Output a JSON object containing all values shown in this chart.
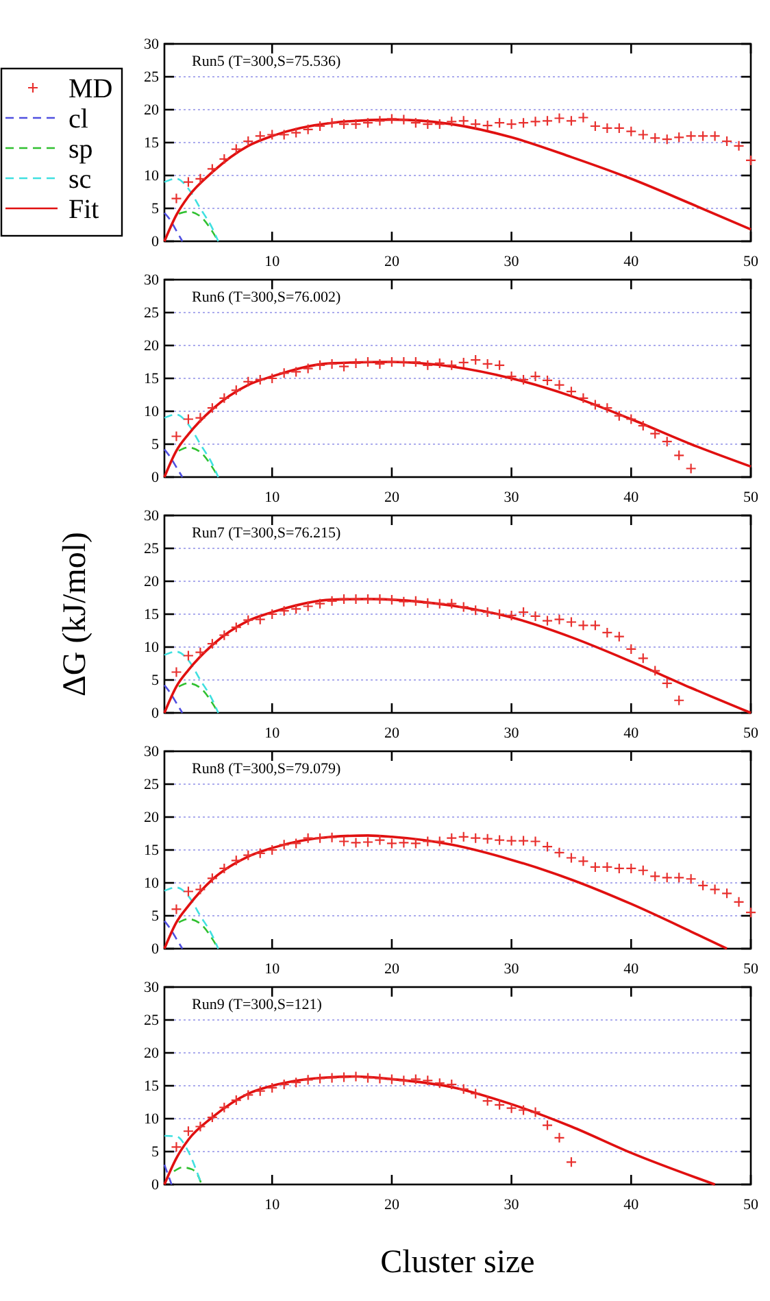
{
  "chart_data": [
    {
      "type": "scatter",
      "annotations": [
        "Run5 (T=300,S=75.536)"
      ],
      "xlim": [
        1,
        50
      ],
      "xticks": [
        10,
        20,
        30,
        40,
        50
      ],
      "ylim": [
        0,
        30
      ],
      "yticks": [
        0,
        5,
        10,
        15,
        20,
        25,
        30
      ],
      "grid": "y",
      "legend": "left",
      "series": [
        {
          "name": "MD",
          "type": "scatter",
          "marker": "cross",
          "color": "#e8302e",
          "x": [
            2,
            3,
            4,
            5,
            6,
            7,
            8,
            9,
            10,
            11,
            12,
            13,
            14,
            15,
            16,
            17,
            18,
            19,
            20,
            21,
            22,
            23,
            24,
            25,
            26,
            27,
            28,
            29,
            30,
            31,
            32,
            33,
            34,
            35,
            36,
            37,
            38,
            39,
            40,
            41,
            42,
            43,
            44,
            45,
            46,
            47,
            48,
            49,
            50
          ],
          "values": [
            6.5,
            9,
            9.5,
            11,
            12.5,
            14,
            15.2,
            16,
            16.2,
            16.2,
            16.5,
            17,
            17.5,
            18,
            17.8,
            17.8,
            18,
            18.3,
            18.6,
            18.5,
            18,
            17.8,
            17.8,
            18.2,
            18.3,
            17.8,
            17.6,
            18,
            17.8,
            18,
            18.2,
            18.3,
            18.7,
            18.3,
            18.8,
            17.5,
            17.2,
            17.2,
            16.7,
            16.2,
            15.7,
            15.5,
            15.8,
            16,
            16,
            16,
            15.2,
            14.5,
            12.3
          ]
        },
        {
          "name": "cl",
          "type": "line",
          "line_style": "dashed",
          "color": "#5050e0",
          "x": [
            1,
            1.5,
            2,
            2.5
          ],
          "values": [
            4.3,
            3.2,
            1.6,
            0
          ]
        },
        {
          "name": "sp",
          "type": "line",
          "line_style": "dashed",
          "color": "#30c030",
          "x": [
            2.2,
            3,
            4,
            5,
            5.5
          ],
          "values": [
            4.2,
            4.5,
            3.8,
            1.5,
            0
          ]
        },
        {
          "name": "sc",
          "type": "line",
          "line_style": "dashed",
          "color": "#40e0e0",
          "x": [
            1,
            2,
            3,
            4,
            5,
            5.5
          ],
          "values": [
            9,
            9.5,
            8,
            5,
            2,
            0
          ]
        },
        {
          "name": "Fit",
          "type": "line",
          "line_style": "solid",
          "color": "#e01010",
          "x": [
            1,
            2,
            3,
            5,
            8,
            10,
            15,
            20,
            25,
            30,
            35,
            40,
            45,
            50
          ],
          "values": [
            0,
            4,
            6.8,
            10.5,
            14.5,
            16,
            18,
            18.5,
            17.8,
            15.8,
            12.8,
            9.5,
            5.7,
            1.8
          ]
        }
      ]
    },
    {
      "type": "scatter",
      "annotations": [
        "Run6 (T=300,S=76.002)"
      ],
      "xlim": [
        1,
        50
      ],
      "xticks": [
        10,
        20,
        30,
        40,
        50
      ],
      "ylim": [
        0,
        30
      ],
      "yticks": [
        0,
        5,
        10,
        15,
        20,
        25,
        30
      ],
      "grid": "y",
      "series": [
        {
          "type": "scatter",
          "marker": "cross",
          "color": "#e8302e",
          "x": [
            2,
            3,
            4,
            5,
            6,
            7,
            8,
            9,
            10,
            11,
            12,
            13,
            14,
            15,
            16,
            17,
            18,
            19,
            20,
            21,
            22,
            23,
            24,
            25,
            26,
            27,
            28,
            29,
            30,
            31,
            32,
            33,
            34,
            35,
            36,
            37,
            38,
            39,
            40,
            41,
            42,
            43,
            44,
            45
          ],
          "values": [
            6.2,
            8.8,
            9,
            10.5,
            12,
            13.2,
            14.5,
            14.8,
            15,
            15.8,
            16,
            16.5,
            17,
            17.2,
            16.8,
            17.3,
            17.5,
            17.2,
            17.5,
            17.5,
            17.5,
            17,
            17.3,
            17,
            17.4,
            17.8,
            17.2,
            17,
            15.3,
            14.8,
            15.3,
            14.7,
            14,
            13,
            12,
            11,
            10.5,
            9.3,
            8.8,
            7.8,
            6.6,
            5.4,
            3.3,
            1.3
          ]
        },
        {
          "type": "line",
          "line_style": "dashed",
          "color": "#5050e0",
          "x": [
            1,
            1.5,
            2,
            2.5
          ],
          "values": [
            4.2,
            3,
            1.5,
            0
          ]
        },
        {
          "type": "line",
          "line_style": "dashed",
          "color": "#30c030",
          "x": [
            2.2,
            3,
            4,
            5,
            5.5
          ],
          "values": [
            4,
            4.5,
            3.8,
            1.5,
            0
          ]
        },
        {
          "type": "line",
          "line_style": "dashed",
          "color": "#40e0e0",
          "x": [
            1,
            2,
            3,
            4,
            5,
            5.5
          ],
          "values": [
            9,
            9.5,
            8,
            5,
            2,
            0
          ]
        },
        {
          "type": "line",
          "line_style": "solid",
          "color": "#e01010",
          "x": [
            1,
            2,
            3,
            5,
            8,
            10,
            15,
            20,
            25,
            30,
            35,
            40,
            45,
            50
          ],
          "values": [
            0,
            4,
            6.5,
            10.3,
            14,
            15.3,
            17.3,
            17.5,
            16.8,
            15,
            12.3,
            8.8,
            5,
            1.6
          ]
        }
      ]
    },
    {
      "type": "scatter",
      "annotations": [
        "Run7 (T=300,S=76.215)"
      ],
      "ylabel": "ΔG (kJ/mol)",
      "xlim": [
        1,
        50
      ],
      "xticks": [
        10,
        20,
        30,
        40,
        50
      ],
      "ylim": [
        0,
        30
      ],
      "yticks": [
        0,
        5,
        10,
        15,
        20,
        25,
        30
      ],
      "grid": "y",
      "series": [
        {
          "type": "scatter",
          "marker": "cross",
          "color": "#e8302e",
          "x": [
            2,
            3,
            4,
            5,
            6,
            7,
            8,
            9,
            10,
            11,
            12,
            13,
            14,
            15,
            16,
            17,
            18,
            19,
            20,
            21,
            22,
            23,
            24,
            25,
            26,
            27,
            28,
            29,
            30,
            31,
            32,
            33,
            34,
            35,
            36,
            37,
            38,
            39,
            40,
            41,
            42,
            43,
            44
          ],
          "values": [
            6.2,
            8.7,
            9.2,
            10.5,
            11.8,
            13,
            14.1,
            14.2,
            15,
            15.5,
            15.8,
            16.2,
            16.6,
            17,
            17.3,
            17.3,
            17.3,
            17.3,
            17.2,
            16.9,
            17,
            16.7,
            16.6,
            16.6,
            16.1,
            15.6,
            15.3,
            15,
            14.8,
            15.3,
            14.7,
            14,
            14.2,
            13.8,
            13.3,
            13.3,
            12.2,
            11.6,
            9.7,
            8.3,
            6.4,
            4.5,
            1.9
          ]
        },
        {
          "type": "line",
          "line_style": "dashed",
          "color": "#5050e0",
          "x": [
            1,
            1.5,
            2,
            2.5
          ],
          "values": [
            4.2,
            3,
            1.5,
            0
          ]
        },
        {
          "type": "line",
          "line_style": "dashed",
          "color": "#30c030",
          "x": [
            2.2,
            3,
            4,
            5,
            5.5
          ],
          "values": [
            4,
            4.5,
            3.8,
            1.5,
            0
          ]
        },
        {
          "type": "line",
          "line_style": "dashed",
          "color": "#40e0e0",
          "x": [
            1,
            2,
            3,
            4,
            5,
            5.5
          ],
          "values": [
            8.8,
            9.3,
            8,
            5,
            2,
            0
          ]
        },
        {
          "type": "line",
          "line_style": "solid",
          "color": "#e01010",
          "x": [
            1,
            2,
            3,
            5,
            8,
            10,
            15,
            18,
            20,
            25,
            30,
            35,
            40,
            45,
            50
          ],
          "values": [
            0,
            4,
            6.5,
            10.3,
            14,
            15.3,
            17.2,
            17.3,
            17.2,
            16.3,
            14.5,
            11.5,
            7.8,
            3.8,
            0
          ]
        }
      ]
    },
    {
      "type": "scatter",
      "annotations": [
        "Run8 (T=300,S=79.079)"
      ],
      "xlim": [
        1,
        50
      ],
      "xticks": [
        10,
        20,
        30,
        40,
        50
      ],
      "ylim": [
        0,
        30
      ],
      "yticks": [
        0,
        5,
        10,
        15,
        20,
        25,
        30
      ],
      "grid": "y",
      "series": [
        {
          "type": "scatter",
          "marker": "cross",
          "color": "#e8302e",
          "x": [
            2,
            3,
            4,
            5,
            6,
            7,
            8,
            9,
            10,
            11,
            12,
            13,
            14,
            15,
            16,
            17,
            18,
            19,
            20,
            21,
            22,
            23,
            24,
            25,
            26,
            27,
            28,
            29,
            30,
            31,
            32,
            33,
            34,
            35,
            36,
            37,
            38,
            39,
            40,
            41,
            42,
            43,
            44,
            45,
            46,
            47,
            48,
            49,
            50
          ],
          "values": [
            6,
            8.7,
            9,
            10.7,
            12.2,
            13.4,
            14.2,
            14.5,
            15,
            15.8,
            16,
            16.8,
            16.8,
            16.9,
            16.3,
            16.1,
            16.2,
            16.5,
            16,
            16.1,
            16,
            16.3,
            16.3,
            16.8,
            17,
            16.8,
            16.7,
            16.5,
            16.4,
            16.4,
            16.3,
            15.5,
            14.6,
            13.8,
            13.3,
            12.4,
            12.4,
            12.2,
            12.2,
            11.9,
            11,
            10.8,
            10.8,
            10.6,
            9.6,
            9,
            8.4,
            7.1,
            5.5
          ]
        },
        {
          "type": "line",
          "line_style": "dashed",
          "color": "#5050e0",
          "x": [
            1,
            1.5,
            2,
            2.5
          ],
          "values": [
            4.2,
            3,
            1.5,
            0
          ]
        },
        {
          "type": "line",
          "line_style": "dashed",
          "color": "#30c030",
          "x": [
            2.2,
            3,
            4,
            5,
            5.5
          ],
          "values": [
            4,
            4.5,
            3.8,
            1.5,
            0
          ]
        },
        {
          "type": "line",
          "line_style": "dashed",
          "color": "#40e0e0",
          "x": [
            1,
            2,
            3,
            4,
            5,
            5.5
          ],
          "values": [
            8.8,
            9.3,
            8,
            5,
            2,
            0
          ]
        },
        {
          "type": "line",
          "line_style": "solid",
          "color": "#e01010",
          "x": [
            1,
            2,
            3,
            5,
            8,
            10,
            15,
            18,
            20,
            25,
            30,
            35,
            40,
            45,
            48
          ],
          "values": [
            0,
            4,
            6.5,
            10.5,
            14,
            15.3,
            17,
            17.2,
            17,
            15.8,
            13.5,
            10.5,
            6.8,
            2.6,
            0
          ]
        }
      ]
    },
    {
      "type": "scatter",
      "annotations": [
        "Run9 (T=300,S=121)"
      ],
      "xlabel": "Cluster size",
      "xlim": [
        1,
        50
      ],
      "xticks": [
        10,
        20,
        30,
        40,
        50
      ],
      "ylim": [
        0,
        30
      ],
      "yticks": [
        0,
        5,
        10,
        15,
        20,
        25,
        30
      ],
      "grid": "y",
      "series": [
        {
          "type": "scatter",
          "marker": "cross",
          "color": "#e8302e",
          "x": [
            2,
            3,
            4,
            5,
            6,
            7,
            8,
            9,
            10,
            11,
            12,
            13,
            14,
            15,
            16,
            17,
            18,
            19,
            20,
            21,
            22,
            23,
            24,
            25,
            26,
            27,
            28,
            29,
            30,
            31,
            32,
            33,
            34,
            35
          ],
          "values": [
            5.7,
            8.1,
            8.8,
            10.2,
            11.7,
            12.8,
            13.6,
            14.2,
            14.7,
            15.2,
            15.5,
            15.9,
            16.1,
            16.2,
            16.3,
            16.4,
            16.2,
            16.1,
            16,
            15.8,
            16,
            15.8,
            15.4,
            15.2,
            14.5,
            13.8,
            12.7,
            12.1,
            11.6,
            11.3,
            11,
            9,
            7.1,
            3.4
          ]
        },
        {
          "type": "line",
          "line_style": "dashed",
          "color": "#5050e0",
          "x": [
            1,
            1.3,
            1.6
          ],
          "values": [
            3,
            1.5,
            0
          ]
        },
        {
          "type": "line",
          "line_style": "dashed",
          "color": "#30c030",
          "x": [
            1.8,
            2.5,
            3.3,
            3.9,
            4.1
          ],
          "values": [
            2,
            2.6,
            2.3,
            1,
            0
          ]
        },
        {
          "type": "line",
          "line_style": "dashed",
          "color": "#40e0e0",
          "x": [
            1,
            2,
            3,
            3.7,
            4.1
          ],
          "values": [
            7.4,
            7.3,
            5,
            2,
            0
          ]
        },
        {
          "type": "line",
          "line_style": "solid",
          "color": "#e01010",
          "x": [
            1,
            2,
            3,
            5,
            8,
            10,
            15,
            17,
            20,
            25,
            30,
            35,
            40,
            47
          ],
          "values": [
            0,
            4,
            6.8,
            10.2,
            13.8,
            15,
            16.3,
            16.4,
            16,
            14.8,
            12.2,
            8.8,
            4.8,
            0
          ]
        }
      ]
    }
  ]
}
